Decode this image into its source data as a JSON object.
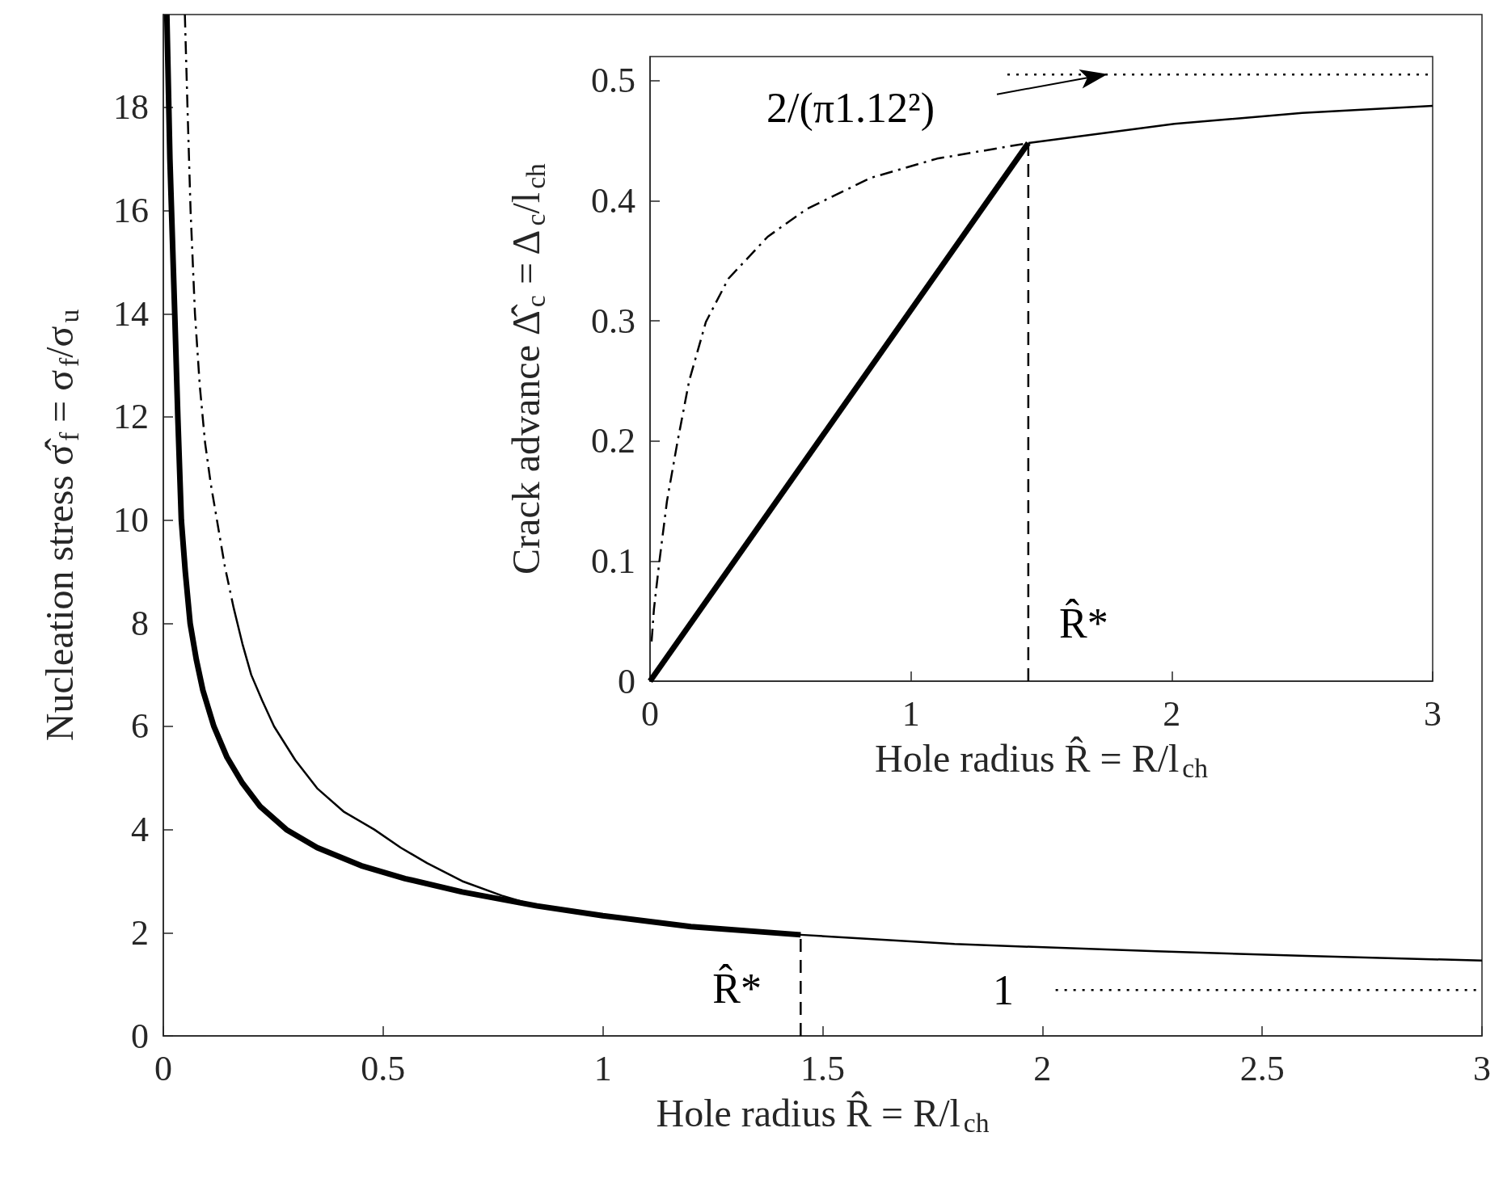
{
  "chart_data": [
    {
      "type": "line",
      "xlabel": "Hole radius R̂ = R/l$_{ch}$",
      "ylabel": "Nucleation stress σ̂$_{f}$ = σ$_{f}$/σ$_{u}$",
      "xlim": [
        0,
        3
      ],
      "xticks": [
        0,
        0.5,
        1,
        1.5,
        2,
        2.5,
        3
      ],
      "ylim": [
        0,
        19.8
      ],
      "yticks": [
        0,
        2,
        4,
        6,
        8,
        10,
        12,
        14,
        16,
        18
      ],
      "series": [
        {
          "color": "#000000",
          "line_style": "solid",
          "x": [
            0.008,
            0.015,
            0.026,
            0.033,
            0.041,
            0.05,
            0.061,
            0.075,
            0.09,
            0.115,
            0.145,
            0.18,
            0.22,
            0.28,
            0.35,
            0.45,
            0.55,
            0.68,
            0.85,
            1.0,
            1.2,
            1.45
          ],
          "values": [
            19.8,
            17,
            14,
            12,
            10,
            9,
            8,
            7.3,
            6.7,
            6,
            5.4,
            4.9,
            4.45,
            4,
            3.65,
            3.3,
            3.05,
            2.79,
            2.52,
            2.33,
            2.12,
            1.96
          ]
        },
        {
          "color": "#000000",
          "line_style": "solid",
          "x": [
            0.16,
            0.18,
            0.2,
            0.225,
            0.252,
            0.3,
            0.35,
            0.41,
            0.48,
            0.54,
            0.6,
            0.68,
            0.77,
            0.85,
            1.0,
            1.2,
            1.45,
            1.8,
            2.26,
            2.6,
            3
          ],
          "values": [
            8.3,
            7.6,
            7,
            6.5,
            6,
            5.35,
            4.8,
            4.35,
            4,
            3.65,
            3.35,
            3,
            2.72,
            2.52,
            2.33,
            2.12,
            1.96,
            1.78,
            1.64,
            1.55,
            1.46
          ]
        },
        {
          "color": "#000000",
          "line_style": "dashdot",
          "x": [
            0.049,
            0.055,
            0.062,
            0.072,
            0.083,
            0.095,
            0.108,
            0.122,
            0.14,
            0.16
          ],
          "values": [
            19.8,
            18,
            16,
            14,
            12.6,
            11.5,
            10.7,
            10,
            9.1,
            8.3
          ]
        },
        {
          "color": "#000000",
          "line_style": "dashed",
          "x": [
            1.45,
            1.45
          ],
          "values": [
            0,
            1.96
          ]
        },
        {
          "color": "#000000",
          "line_style": "dotted",
          "x": [
            2.03,
            3
          ],
          "values": [
            0.89,
            0.89
          ]
        }
      ],
      "annotations": [
        "R̂*",
        "1"
      ]
    },
    {
      "type": "line",
      "xlabel": "Hole radius R̂ = R/l$_{ch}$",
      "ylabel": "Crack advance Δ̂$_{c}$ = Δ$_{c}$/l$_{ch}$",
      "xlim": [
        0,
        3
      ],
      "xticks": [
        0,
        1,
        2,
        3
      ],
      "ylim": [
        0,
        0.52
      ],
      "yticks": [
        0,
        0.1,
        0.2,
        0.3,
        0.4,
        0.5
      ],
      "series": [
        {
          "color": "#000000",
          "line_style": "solid",
          "x": [
            0,
            1.45
          ],
          "values": [
            0,
            0.448
          ]
        },
        {
          "color": "#000000",
          "line_style": "dashdot",
          "x": [
            0.006,
            0.015,
            0.036,
            0.065,
            0.105,
            0.15,
            0.214,
            0.3,
            0.451,
            0.6,
            0.846,
            1.1,
            1.45
          ],
          "values": [
            0.033,
            0.06,
            0.1,
            0.15,
            0.199,
            0.25,
            0.299,
            0.335,
            0.37,
            0.393,
            0.419,
            0.435,
            0.448
          ]
        },
        {
          "color": "#000000",
          "line_style": "solid",
          "x": [
            1.45,
            2.01,
            2.5,
            3
          ],
          "values": [
            0.448,
            0.464,
            0.473,
            0.479
          ]
        },
        {
          "color": "#000000",
          "line_style": "dashed",
          "x": [
            1.45,
            1.45
          ],
          "values": [
            0,
            0.448
          ]
        },
        {
          "color": "#000000",
          "line_style": "dotted",
          "x": [
            1.37,
            3
          ],
          "values": [
            0.505,
            0.505
          ]
        }
      ],
      "annotations": [
        "2/(π1.12²)",
        "R̂*"
      ]
    }
  ]
}
